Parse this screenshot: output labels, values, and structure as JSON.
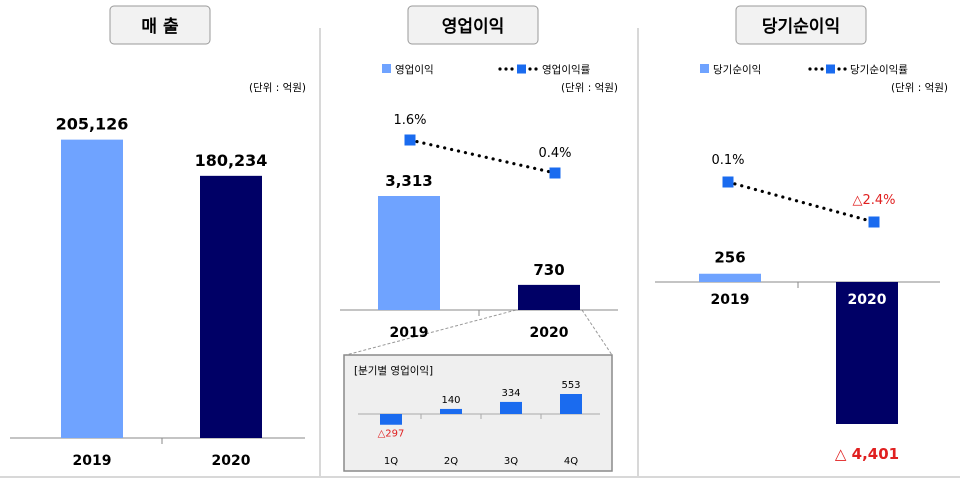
{
  "panels": {
    "revenue": {
      "title": "매 출",
      "unit": "(단위 : 억원)"
    },
    "operating": {
      "title": "영업이익",
      "unit": "(단위 : 억원)",
      "legend_bar": "영업이익",
      "legend_line": "영업이익률"
    },
    "net": {
      "title": "당기순이익",
      "legend_bar": "당기순이익",
      "legend_line": "당기순이익률",
      "unit": "(단위 : 억원)"
    }
  },
  "chart_data": [
    {
      "type": "bar",
      "title": "매 출",
      "categories": [
        "2019",
        "2020"
      ],
      "values": [
        205126,
        180234
      ],
      "value_labels": [
        "205,126",
        "180,234"
      ],
      "ylim": [
        0,
        220000
      ],
      "colors": [
        "#6FA3FF",
        "#000066"
      ]
    },
    {
      "type": "bar",
      "title": "영업이익",
      "categories": [
        "2019",
        "2020"
      ],
      "series": [
        {
          "name": "영업이익",
          "values": [
            3313,
            730
          ],
          "value_labels": [
            "3,313",
            "730"
          ]
        },
        {
          "name": "영업이익률",
          "values": [
            1.6,
            0.4
          ],
          "value_labels": [
            "1.6%",
            "0.4%"
          ]
        }
      ],
      "colors": [
        "#6FA3FF",
        "#000066",
        "#1A6BEF"
      ]
    },
    {
      "type": "bar",
      "title": "분기별 영업이익",
      "categories": [
        "1Q",
        "2Q",
        "3Q",
        "4Q"
      ],
      "values": [
        -297,
        140,
        334,
        553
      ],
      "value_labels": [
        "△297",
        "140",
        "334",
        "553"
      ],
      "color": "#1A6BEF"
    },
    {
      "type": "bar",
      "title": "당기순이익",
      "categories": [
        "2019",
        "2020"
      ],
      "series": [
        {
          "name": "당기순이익",
          "values": [
            256,
            -4401
          ],
          "value_labels": [
            "256",
            "△ 4,401"
          ]
        },
        {
          "name": "당기순이익률",
          "values": [
            0.1,
            -2.4
          ],
          "value_labels": [
            "0.1%",
            "△2.4%"
          ]
        }
      ],
      "colors": [
        "#6FA3FF",
        "#000066",
        "#1A6BEF"
      ],
      "negative_label_color": "#E02020"
    }
  ]
}
